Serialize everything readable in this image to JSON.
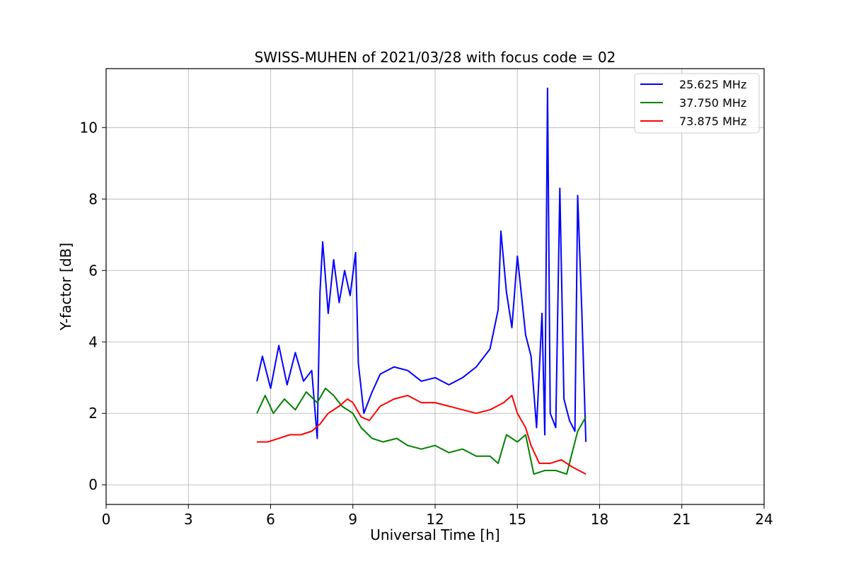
{
  "chart_data": {
    "type": "line",
    "title": "SWISS-MUHEN of 2021/03/28 with focus code = 02",
    "xlabel": "Universal Time [h]",
    "ylabel": "Y-factor [dB]",
    "xlim": [
      0,
      24
    ],
    "ylim": [
      -0.55,
      11.65
    ],
    "xticks": [
      0,
      3,
      6,
      9,
      12,
      15,
      18,
      21,
      24
    ],
    "yticks": [
      0,
      2,
      4,
      6,
      8,
      10
    ],
    "grid": true,
    "legend_position": "top-right",
    "series": [
      {
        "name": "25.625 MHz",
        "color": "#0000ff",
        "points": [
          [
            5.5,
            2.9
          ],
          [
            5.7,
            3.6
          ],
          [
            6.0,
            2.7
          ],
          [
            6.3,
            3.9
          ],
          [
            6.6,
            2.8
          ],
          [
            6.9,
            3.7
          ],
          [
            7.2,
            2.9
          ],
          [
            7.5,
            3.2
          ],
          [
            7.7,
            1.3
          ],
          [
            7.8,
            5.4
          ],
          [
            7.9,
            6.8
          ],
          [
            8.1,
            4.8
          ],
          [
            8.3,
            6.3
          ],
          [
            8.5,
            5.1
          ],
          [
            8.7,
            6.0
          ],
          [
            8.9,
            5.3
          ],
          [
            9.1,
            6.5
          ],
          [
            9.2,
            3.4
          ],
          [
            9.4,
            2.0
          ],
          [
            9.7,
            2.6
          ],
          [
            10.0,
            3.1
          ],
          [
            10.5,
            3.3
          ],
          [
            11.0,
            3.2
          ],
          [
            11.5,
            2.9
          ],
          [
            12.0,
            3.0
          ],
          [
            12.5,
            2.8
          ],
          [
            13.0,
            3.0
          ],
          [
            13.5,
            3.3
          ],
          [
            14.0,
            3.8
          ],
          [
            14.3,
            4.9
          ],
          [
            14.4,
            7.1
          ],
          [
            14.6,
            5.4
          ],
          [
            14.8,
            4.4
          ],
          [
            15.0,
            6.4
          ],
          [
            15.3,
            4.2
          ],
          [
            15.5,
            3.6
          ],
          [
            15.7,
            1.6
          ],
          [
            15.9,
            4.8
          ],
          [
            16.0,
            1.4
          ],
          [
            16.1,
            11.1
          ],
          [
            16.2,
            2.0
          ],
          [
            16.4,
            1.6
          ],
          [
            16.55,
            8.3
          ],
          [
            16.7,
            2.4
          ],
          [
            16.9,
            1.8
          ],
          [
            17.1,
            1.5
          ],
          [
            17.2,
            8.1
          ],
          [
            17.35,
            4.9
          ],
          [
            17.5,
            1.2
          ]
        ]
      },
      {
        "name": "37.750 MHz",
        "color": "#008000",
        "points": [
          [
            5.5,
            2.0
          ],
          [
            5.8,
            2.5
          ],
          [
            6.1,
            2.0
          ],
          [
            6.5,
            2.4
          ],
          [
            6.9,
            2.1
          ],
          [
            7.3,
            2.6
          ],
          [
            7.7,
            2.3
          ],
          [
            8.0,
            2.7
          ],
          [
            8.3,
            2.5
          ],
          [
            8.6,
            2.2
          ],
          [
            9.0,
            2.0
          ],
          [
            9.3,
            1.6
          ],
          [
            9.7,
            1.3
          ],
          [
            10.1,
            1.2
          ],
          [
            10.6,
            1.3
          ],
          [
            11.0,
            1.1
          ],
          [
            11.5,
            1.0
          ],
          [
            12.0,
            1.1
          ],
          [
            12.5,
            0.9
          ],
          [
            13.0,
            1.0
          ],
          [
            13.5,
            0.8
          ],
          [
            14.0,
            0.8
          ],
          [
            14.3,
            0.6
          ],
          [
            14.6,
            1.4
          ],
          [
            15.0,
            1.2
          ],
          [
            15.3,
            1.4
          ],
          [
            15.6,
            0.3
          ],
          [
            16.0,
            0.4
          ],
          [
            16.4,
            0.4
          ],
          [
            16.8,
            0.3
          ],
          [
            17.2,
            1.5
          ],
          [
            17.5,
            1.9
          ]
        ]
      },
      {
        "name": "73.875 MHz",
        "color": "#ff0000",
        "points": [
          [
            5.5,
            1.2
          ],
          [
            5.9,
            1.2
          ],
          [
            6.3,
            1.3
          ],
          [
            6.7,
            1.4
          ],
          [
            7.1,
            1.4
          ],
          [
            7.5,
            1.5
          ],
          [
            7.8,
            1.7
          ],
          [
            8.1,
            2.0
          ],
          [
            8.5,
            2.2
          ],
          [
            8.8,
            2.4
          ],
          [
            9.0,
            2.3
          ],
          [
            9.3,
            1.9
          ],
          [
            9.6,
            1.8
          ],
          [
            10.0,
            2.2
          ],
          [
            10.5,
            2.4
          ],
          [
            11.0,
            2.5
          ],
          [
            11.5,
            2.3
          ],
          [
            12.0,
            2.3
          ],
          [
            12.5,
            2.2
          ],
          [
            13.0,
            2.1
          ],
          [
            13.5,
            2.0
          ],
          [
            14.0,
            2.1
          ],
          [
            14.5,
            2.3
          ],
          [
            14.8,
            2.5
          ],
          [
            15.0,
            2.0
          ],
          [
            15.3,
            1.6
          ],
          [
            15.5,
            1.1
          ],
          [
            15.8,
            0.6
          ],
          [
            16.2,
            0.6
          ],
          [
            16.6,
            0.7
          ],
          [
            17.0,
            0.5
          ],
          [
            17.5,
            0.3
          ]
        ]
      }
    ]
  }
}
